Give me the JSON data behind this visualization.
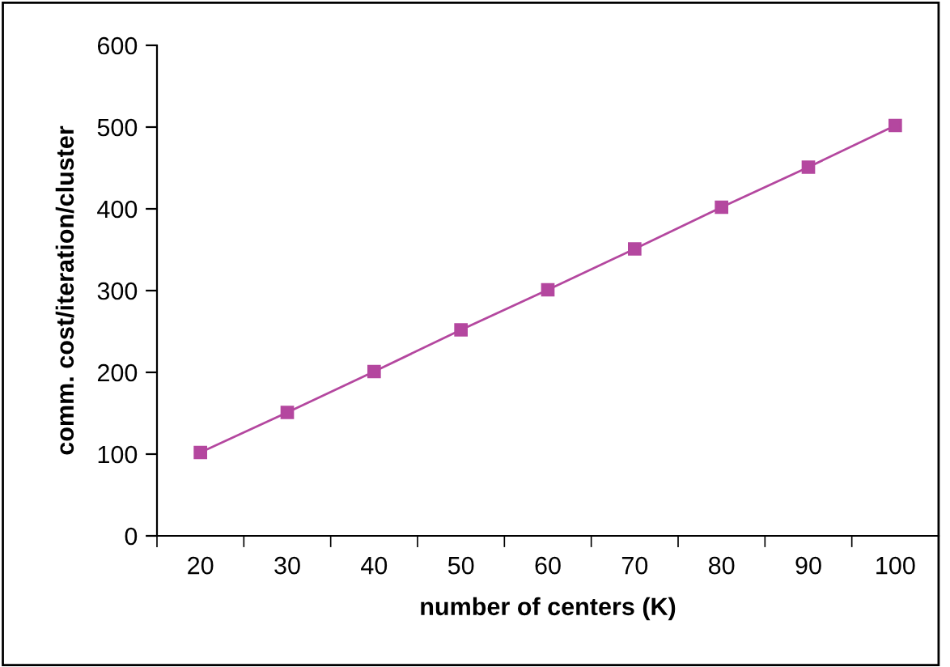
{
  "chart_data": {
    "type": "line",
    "xlabel": "number of centers (K)",
    "ylabel": "comm. cost/iteration/cluster",
    "categories": [
      "20",
      "30",
      "40",
      "50",
      "60",
      "70",
      "80",
      "90",
      "100"
    ],
    "series": [
      {
        "color": "#b4479f",
        "values": [
          102,
          151,
          201,
          252,
          301,
          351,
          402,
          451,
          502
        ]
      }
    ],
    "ylim": [
      0,
      600
    ],
    "yticks": [
      0,
      100,
      200,
      300,
      400,
      500,
      600
    ],
    "marker": "square",
    "line_style": "solid",
    "grid": false,
    "legend": false
  }
}
